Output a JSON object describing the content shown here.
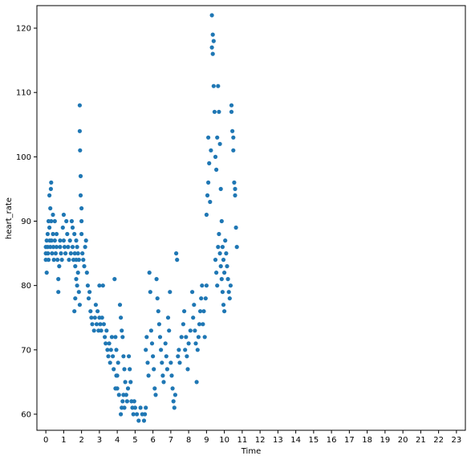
{
  "chart_data": {
    "type": "scatter",
    "title": "",
    "xlabel": "Time",
    "ylabel": "heart_rate",
    "xlim": [
      -0.5,
      23.5
    ],
    "ylim": [
      57.5,
      123.5
    ],
    "xticks": [
      0,
      1,
      2,
      3,
      4,
      5,
      6,
      7,
      8,
      9,
      10,
      11,
      12,
      13,
      14,
      15,
      16,
      17,
      18,
      19,
      20,
      21,
      22,
      23
    ],
    "xtick_labels": [
      "0",
      "1",
      "2",
      "3",
      "4",
      "5",
      "6",
      "7",
      "8",
      "9",
      "10",
      "11",
      "12",
      "13",
      "14",
      "15",
      "16",
      "17",
      "18",
      "19",
      "20",
      "21",
      "22",
      "23"
    ],
    "yticks": [
      60,
      70,
      80,
      90,
      100,
      110,
      120
    ],
    "ytick_labels": [
      "60",
      "70",
      "80",
      "90",
      "100",
      "110",
      "120"
    ],
    "grid": false,
    "marker_color": "#1f77b4",
    "series": [
      {
        "points": [
          [
            0.0,
            86
          ],
          [
            0.0,
            85
          ],
          [
            0.0,
            84
          ],
          [
            0.05,
            87
          ],
          [
            0.05,
            82
          ],
          [
            0.1,
            88
          ],
          [
            0.1,
            86
          ],
          [
            0.12,
            85
          ],
          [
            0.15,
            90
          ],
          [
            0.15,
            84
          ],
          [
            0.2,
            94
          ],
          [
            0.2,
            89
          ],
          [
            0.22,
            87
          ],
          [
            0.25,
            92
          ],
          [
            0.25,
            86
          ],
          [
            0.28,
            95
          ],
          [
            0.3,
            96
          ],
          [
            0.3,
            90
          ],
          [
            0.32,
            87
          ],
          [
            0.35,
            85
          ],
          [
            0.4,
            91
          ],
          [
            0.4,
            88
          ],
          [
            0.42,
            86
          ],
          [
            0.45,
            84
          ],
          [
            0.5,
            90
          ],
          [
            0.5,
            87
          ],
          [
            0.55,
            85
          ],
          [
            0.6,
            88
          ],
          [
            0.6,
            86
          ],
          [
            0.65,
            84
          ],
          [
            0.7,
            79
          ],
          [
            0.7,
            81
          ],
          [
            0.75,
            83
          ],
          [
            0.8,
            86
          ],
          [
            0.8,
            87
          ],
          [
            0.85,
            85
          ],
          [
            0.9,
            84
          ],
          [
            0.95,
            89
          ],
          [
            1.0,
            91
          ],
          [
            1.0,
            87
          ],
          [
            1.05,
            86
          ],
          [
            1.1,
            85
          ],
          [
            1.15,
            90
          ],
          [
            1.2,
            88
          ],
          [
            1.25,
            86
          ],
          [
            1.3,
            84
          ],
          [
            1.35,
            87
          ],
          [
            1.4,
            85
          ],
          [
            1.45,
            90
          ],
          [
            1.5,
            89
          ],
          [
            1.5,
            86
          ],
          [
            1.55,
            84
          ],
          [
            1.6,
            88
          ],
          [
            1.62,
            85
          ],
          [
            1.65,
            83
          ],
          [
            1.7,
            87
          ],
          [
            1.7,
            84
          ],
          [
            1.75,
            86
          ],
          [
            1.8,
            85
          ],
          [
            1.85,
            84
          ],
          [
            1.9,
            108
          ],
          [
            1.9,
            104
          ],
          [
            1.92,
            101
          ],
          [
            1.95,
            97
          ],
          [
            1.95,
            94
          ],
          [
            2.0,
            92
          ],
          [
            2.0,
            90
          ],
          [
            2.0,
            88
          ],
          [
            2.05,
            85
          ],
          [
            2.1,
            84
          ],
          [
            2.15,
            83
          ],
          [
            2.2,
            86
          ],
          [
            2.25,
            87
          ],
          [
            2.3,
            82
          ],
          [
            2.35,
            80
          ],
          [
            2.4,
            78
          ],
          [
            2.45,
            79
          ],
          [
            1.6,
            76
          ],
          [
            1.65,
            78
          ],
          [
            1.7,
            81
          ],
          [
            1.75,
            80
          ],
          [
            1.8,
            82
          ],
          [
            1.85,
            79
          ],
          [
            1.9,
            77
          ],
          [
            2.5,
            76
          ],
          [
            2.55,
            75
          ],
          [
            2.6,
            74
          ],
          [
            2.7,
            73
          ],
          [
            2.75,
            75
          ],
          [
            2.8,
            77
          ],
          [
            2.85,
            74
          ],
          [
            2.9,
            76
          ],
          [
            2.95,
            73
          ],
          [
            3.0,
            80
          ],
          [
            3.0,
            75
          ],
          [
            3.05,
            74
          ],
          [
            3.1,
            73
          ],
          [
            3.15,
            75
          ],
          [
            3.2,
            80
          ],
          [
            3.25,
            74
          ],
          [
            3.3,
            72
          ],
          [
            3.35,
            71
          ],
          [
            3.4,
            73
          ],
          [
            3.45,
            70
          ],
          [
            3.5,
            69
          ],
          [
            3.55,
            71
          ],
          [
            3.6,
            68
          ],
          [
            3.65,
            70
          ],
          [
            3.7,
            72
          ],
          [
            3.75,
            69
          ],
          [
            3.8,
            67
          ],
          [
            3.85,
            81
          ],
          [
            3.9,
            72
          ],
          [
            3.95,
            70
          ],
          [
            4.0,
            66
          ],
          [
            4.0,
            64
          ],
          [
            4.05,
            68
          ],
          [
            4.1,
            63
          ],
          [
            4.15,
            77
          ],
          [
            4.2,
            75
          ],
          [
            4.25,
            73
          ],
          [
            4.3,
            72
          ],
          [
            4.35,
            69
          ],
          [
            4.4,
            67
          ],
          [
            4.45,
            65
          ],
          [
            4.5,
            63
          ],
          [
            4.55,
            62
          ],
          [
            4.6,
            64
          ],
          [
            4.65,
            69
          ],
          [
            4.7,
            67
          ],
          [
            4.75,
            65
          ],
          [
            4.8,
            62
          ],
          [
            4.85,
            61
          ],
          [
            4.9,
            60
          ],
          [
            4.95,
            62
          ],
          [
            5.0,
            61
          ],
          [
            5.1,
            60
          ],
          [
            5.2,
            59
          ],
          [
            5.3,
            61
          ],
          [
            5.4,
            60
          ],
          [
            5.5,
            59
          ],
          [
            5.55,
            60
          ],
          [
            5.6,
            61
          ],
          [
            4.2,
            60
          ],
          [
            4.25,
            61
          ],
          [
            4.3,
            62
          ],
          [
            4.35,
            63
          ],
          [
            4.4,
            61
          ],
          [
            3.9,
            64
          ],
          [
            3.95,
            66
          ],
          [
            5.6,
            70
          ],
          [
            5.65,
            72
          ],
          [
            5.7,
            68
          ],
          [
            5.75,
            66
          ],
          [
            5.8,
            82
          ],
          [
            5.85,
            79
          ],
          [
            5.9,
            73
          ],
          [
            5.95,
            71
          ],
          [
            6.0,
            69
          ],
          [
            6.05,
            67
          ],
          [
            6.1,
            64
          ],
          [
            6.15,
            63
          ],
          [
            6.2,
            81
          ],
          [
            6.25,
            78
          ],
          [
            6.3,
            76
          ],
          [
            6.35,
            74
          ],
          [
            6.4,
            72
          ],
          [
            6.45,
            70
          ],
          [
            6.5,
            68
          ],
          [
            6.55,
            66
          ],
          [
            6.6,
            65
          ],
          [
            6.7,
            71
          ],
          [
            6.75,
            69
          ],
          [
            6.8,
            67
          ],
          [
            6.85,
            75
          ],
          [
            6.9,
            73
          ],
          [
            6.95,
            79
          ],
          [
            7.0,
            68
          ],
          [
            7.05,
            66
          ],
          [
            7.1,
            64
          ],
          [
            7.15,
            62
          ],
          [
            7.2,
            61
          ],
          [
            7.25,
            63
          ],
          [
            7.3,
            85
          ],
          [
            7.35,
            84
          ],
          [
            7.4,
            69
          ],
          [
            7.45,
            70
          ],
          [
            7.5,
            68
          ],
          [
            7.6,
            72
          ],
          [
            7.7,
            74
          ],
          [
            7.75,
            76
          ],
          [
            7.8,
            70
          ],
          [
            7.85,
            72
          ],
          [
            7.9,
            69
          ],
          [
            7.95,
            67
          ],
          [
            8.0,
            71
          ],
          [
            8.1,
            73
          ],
          [
            8.2,
            79
          ],
          [
            8.25,
            75
          ],
          [
            8.3,
            77
          ],
          [
            8.35,
            73
          ],
          [
            8.4,
            71
          ],
          [
            8.45,
            65
          ],
          [
            8.5,
            70
          ],
          [
            8.55,
            72
          ],
          [
            8.6,
            74
          ],
          [
            8.65,
            76
          ],
          [
            8.7,
            78
          ],
          [
            8.75,
            80
          ],
          [
            8.8,
            74
          ],
          [
            8.85,
            76
          ],
          [
            8.9,
            72
          ],
          [
            8.95,
            78
          ],
          [
            9.0,
            80
          ],
          [
            9.0,
            91
          ],
          [
            9.05,
            94
          ],
          [
            9.1,
            103
          ],
          [
            9.1,
            96
          ],
          [
            9.15,
            99
          ],
          [
            9.2,
            93
          ],
          [
            9.25,
            101
          ],
          [
            9.3,
            122
          ],
          [
            9.3,
            117
          ],
          [
            9.35,
            119
          ],
          [
            9.35,
            116
          ],
          [
            9.4,
            118
          ],
          [
            9.4,
            111
          ],
          [
            9.45,
            107
          ],
          [
            9.5,
            100
          ],
          [
            9.55,
            98
          ],
          [
            9.6,
            103
          ],
          [
            9.65,
            111
          ],
          [
            9.7,
            107
          ],
          [
            9.75,
            102
          ],
          [
            9.8,
            95
          ],
          [
            9.85,
            90
          ],
          [
            9.9,
            86
          ],
          [
            9.95,
            84
          ],
          [
            10.0,
            82
          ],
          [
            10.05,
            87
          ],
          [
            10.1,
            85
          ],
          [
            10.15,
            83
          ],
          [
            10.2,
            81
          ],
          [
            10.25,
            79
          ],
          [
            10.3,
            78
          ],
          [
            10.35,
            80
          ],
          [
            10.4,
            108
          ],
          [
            10.4,
            107
          ],
          [
            10.45,
            104
          ],
          [
            10.5,
            103
          ],
          [
            10.5,
            101
          ],
          [
            10.55,
            96
          ],
          [
            10.6,
            95
          ],
          [
            10.6,
            94
          ],
          [
            10.65,
            89
          ],
          [
            10.7,
            86
          ],
          [
            9.5,
            84
          ],
          [
            9.55,
            82
          ],
          [
            9.6,
            80
          ],
          [
            9.65,
            86
          ],
          [
            9.7,
            88
          ],
          [
            9.75,
            85
          ],
          [
            9.8,
            83
          ],
          [
            9.85,
            81
          ],
          [
            9.9,
            79
          ],
          [
            9.95,
            77
          ],
          [
            10.0,
            76
          ]
        ]
      }
    ]
  }
}
